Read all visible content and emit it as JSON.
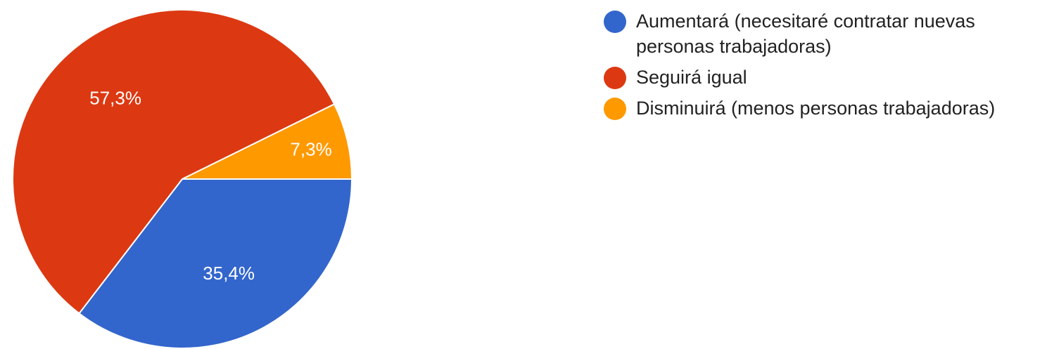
{
  "chart_data": {
    "type": "pie",
    "title": "",
    "categories": [
      "Aumentará (necesitaré contratar nuevas personas trabajadoras)",
      "Seguirá igual",
      "Disminuirá (menos personas trabajadoras)"
    ],
    "values": [
      35.4,
      57.3,
      7.3
    ],
    "value_labels": [
      "35,4%",
      "57,3%",
      "7,3%"
    ],
    "colors": [
      "#3366cc",
      "#dc3912",
      "#ff9900"
    ],
    "legend_position": "right",
    "start_angle_deg": 90,
    "direction": "clockwise"
  },
  "legend": {
    "items": [
      {
        "label": "Aumentará (necesitaré contratar nuevas personas trabajadoras)",
        "color": "#3366cc"
      },
      {
        "label": "Seguirá igual",
        "color": "#dc3912"
      },
      {
        "label": "Disminuirá (menos personas trabajadoras)",
        "color": "#ff9900"
      }
    ]
  }
}
